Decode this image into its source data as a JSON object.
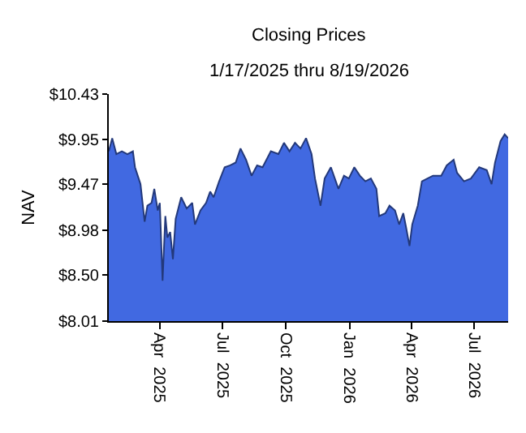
{
  "chart_data": {
    "type": "area",
    "title": "Closing Prices",
    "subtitle": "1/17/2025 thru 8/19/2026",
    "ylabel": "NAV",
    "x": [
      "2025-01-17",
      "2025-01-22",
      "2025-01-28",
      "2025-02-05",
      "2025-02-13",
      "2025-02-21",
      "2025-02-24",
      "2025-03-04",
      "2025-03-10",
      "2025-03-14",
      "2025-03-20",
      "2025-03-24",
      "2025-03-29",
      "2025-04-01",
      "2025-04-05",
      "2025-04-09",
      "2025-04-12",
      "2025-04-16",
      "2025-04-20",
      "2025-04-24",
      "2025-05-02",
      "2025-05-10",
      "2025-05-18",
      "2025-05-22",
      "2025-05-30",
      "2025-06-07",
      "2025-06-13",
      "2025-06-18",
      "2025-06-26",
      "2025-07-04",
      "2025-07-12",
      "2025-07-20",
      "2025-07-27",
      "2025-08-04",
      "2025-08-12",
      "2025-08-20",
      "2025-08-28",
      "2025-09-09",
      "2025-09-20",
      "2025-09-28",
      "2025-10-06",
      "2025-10-14",
      "2025-10-22",
      "2025-10-30",
      "2025-11-07",
      "2025-11-12",
      "2025-11-20",
      "2025-11-26",
      "2025-12-05",
      "2025-12-16",
      "2025-12-24",
      "2025-12-31",
      "2026-01-08",
      "2026-01-16",
      "2026-01-24",
      "2026-02-01",
      "2026-02-09",
      "2026-02-13",
      "2026-02-22",
      "2026-02-28",
      "2026-03-08",
      "2026-03-14",
      "2026-03-20",
      "2026-03-24",
      "2026-03-29",
      "2026-04-02",
      "2026-04-10",
      "2026-04-16",
      "2026-04-24",
      "2026-05-02",
      "2026-05-14",
      "2026-05-22",
      "2026-06-01",
      "2026-06-06",
      "2026-06-16",
      "2026-06-26",
      "2026-07-08",
      "2026-07-19",
      "2026-07-26",
      "2026-07-31",
      "2026-08-08",
      "2026-08-14",
      "2026-08-19"
    ],
    "series": [
      {
        "color": "#4169e1",
        "values": [
          9.82,
          9.96,
          9.79,
          9.82,
          9.79,
          9.82,
          9.65,
          9.47,
          9.07,
          9.24,
          9.27,
          9.42,
          9.19,
          9.27,
          8.44,
          9.13,
          8.9,
          8.96,
          8.67,
          9.1,
          9.33,
          9.21,
          9.27,
          9.04,
          9.19,
          9.27,
          9.39,
          9.33,
          9.5,
          9.65,
          9.67,
          9.7,
          9.85,
          9.73,
          9.56,
          9.67,
          9.65,
          9.82,
          9.79,
          9.91,
          9.82,
          9.91,
          9.85,
          9.96,
          9.79,
          9.53,
          9.24,
          9.53,
          9.65,
          9.42,
          9.56,
          9.53,
          9.65,
          9.56,
          9.5,
          9.53,
          9.42,
          9.13,
          9.16,
          9.24,
          9.19,
          9.04,
          9.16,
          9.01,
          8.81,
          9.04,
          9.24,
          9.5,
          9.53,
          9.56,
          9.56,
          9.67,
          9.73,
          9.59,
          9.5,
          9.53,
          9.65,
          9.62,
          9.47,
          9.7,
          9.93,
          10.0,
          9.96
        ]
      }
    ],
    "xlim": [
      "2025-01-17",
      "2026-08-19"
    ],
    "xticks": [
      {
        "value": "2025-04-01",
        "label": "Apr  2025"
      },
      {
        "value": "2025-07-01",
        "label": "Jul  2025"
      },
      {
        "value": "2025-10-01",
        "label": "Oct  2025"
      },
      {
        "value": "2026-01-01",
        "label": "Jan  2026"
      },
      {
        "value": "2026-04-01",
        "label": "Apr  2026"
      },
      {
        "value": "2026-07-01",
        "label": "Jul  2026"
      }
    ],
    "ylim": [
      8.01,
      10.43
    ],
    "yticks": [
      {
        "value": 8.01,
        "label": "$8.01"
      },
      {
        "value": 8.5,
        "label": "$8.50"
      },
      {
        "value": 8.98,
        "label": "$8.98"
      },
      {
        "value": 9.47,
        "label": "$9.47"
      },
      {
        "value": 9.95,
        "label": "$9.95"
      },
      {
        "value": 10.43,
        "label": "$10.43"
      }
    ]
  }
}
